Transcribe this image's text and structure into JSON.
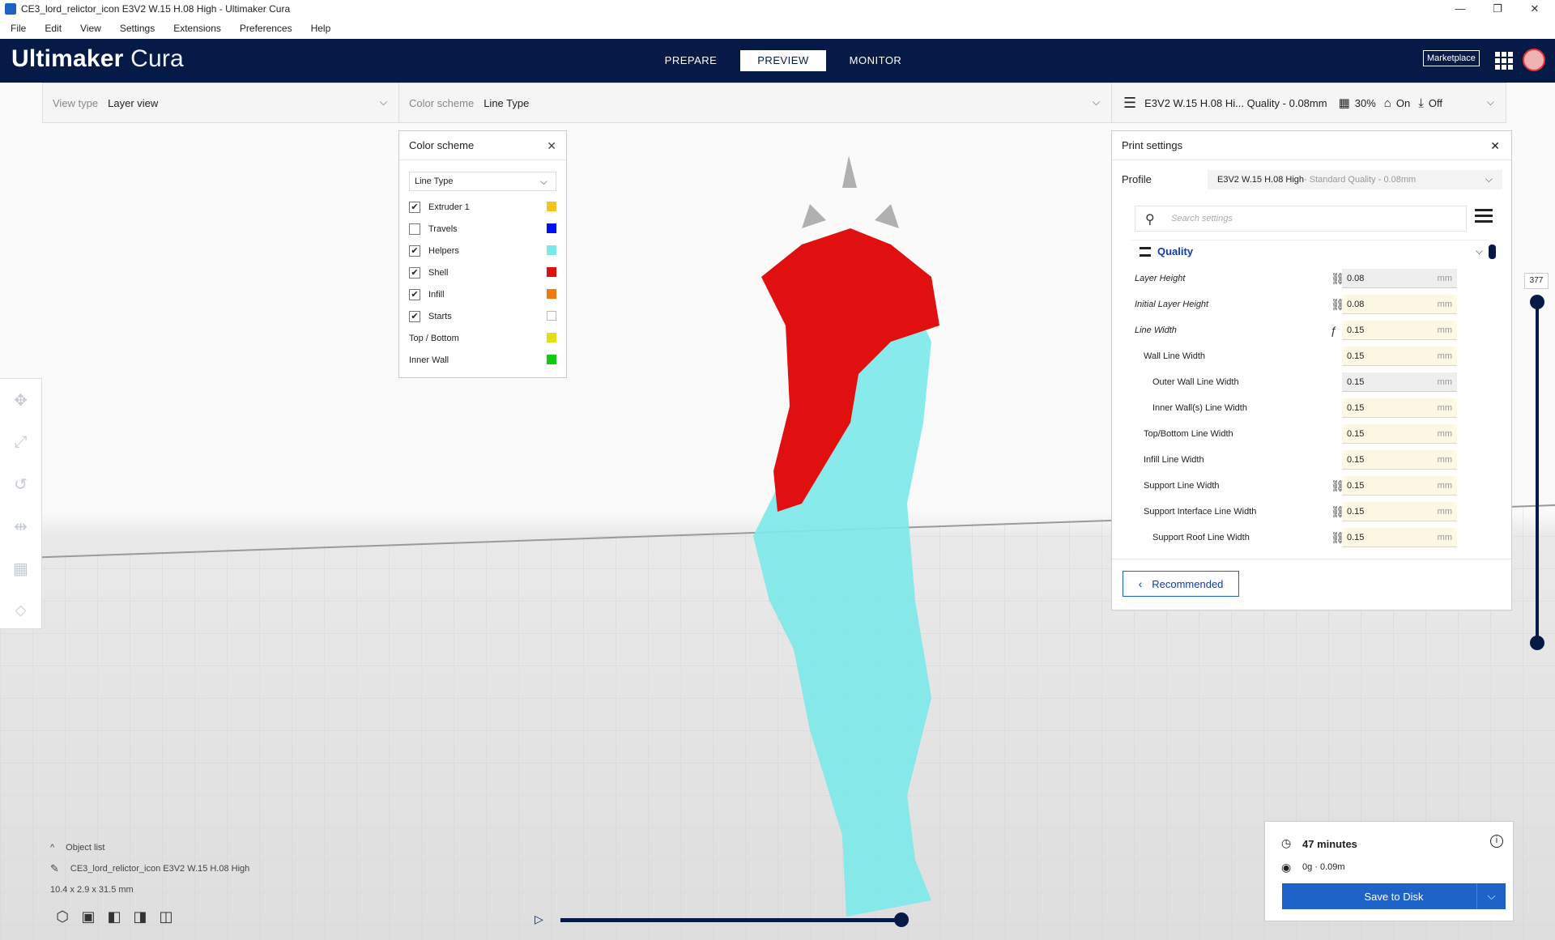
{
  "window": {
    "title": "CE3_lord_relictor_icon E3V2 W.15 H.08 High - Ultimaker Cura",
    "controls": [
      "—",
      "❐",
      "✕"
    ]
  },
  "menu": [
    "File",
    "Edit",
    "View",
    "Settings",
    "Extensions",
    "Preferences",
    "Help"
  ],
  "header": {
    "brand_bold": "Ultimaker",
    "brand_light": "Cura",
    "stages": [
      "PREPARE",
      "PREVIEW",
      "MONITOR"
    ],
    "active_stage": "PREVIEW",
    "marketplace": "Marketplace"
  },
  "viewbar": {
    "view_type_label": "View type",
    "view_type_value": "Layer view",
    "color_scheme_label": "Color scheme",
    "color_scheme_value": "Line Type",
    "profile_summary": "E3V2 W.15 H.08 Hi... Quality - 0.08mm",
    "infill": "30%",
    "support": "On",
    "adhesion": "Off"
  },
  "color_panel": {
    "title": "Color scheme",
    "select": "Line Type",
    "items": [
      {
        "label": "Extruder 1",
        "checkbox": true,
        "checked": true,
        "color": "#f5c320"
      },
      {
        "label": "Travels",
        "checkbox": true,
        "checked": false,
        "color": "#0011ee"
      },
      {
        "label": "Helpers",
        "checkbox": true,
        "checked": true,
        "color": "#7ee8e8"
      },
      {
        "label": "Shell",
        "checkbox": true,
        "checked": true,
        "color": "#e01010"
      },
      {
        "label": "Infill",
        "checkbox": true,
        "checked": true,
        "color": "#ee7a10"
      },
      {
        "label": "Starts",
        "checkbox": true,
        "checked": true,
        "color": "#ffffff"
      },
      {
        "label": "Top / Bottom",
        "checkbox": false,
        "checked": false,
        "color": "#e0e010"
      },
      {
        "label": "Inner Wall",
        "checkbox": false,
        "checked": false,
        "color": "#10cc10"
      }
    ]
  },
  "print_settings": {
    "title": "Print settings",
    "profile_label": "Profile",
    "profile_name": "E3V2 W.15 H.08 High",
    "profile_detail": " - Standard Quality - 0.08mm",
    "search_placeholder": "Search settings",
    "category": "Quality",
    "rows": [
      {
        "label": "Layer Height",
        "value": "0.08",
        "unit": "mm",
        "indent": 0,
        "italic": true,
        "icon": "link",
        "grey": true
      },
      {
        "label": "Initial Layer Height",
        "value": "0.08",
        "unit": "mm",
        "indent": 0,
        "italic": true,
        "icon": "link",
        "grey": false
      },
      {
        "label": "Line Width",
        "value": "0.15",
        "unit": "mm",
        "indent": 0,
        "italic": true,
        "icon": "fx",
        "grey": false
      },
      {
        "label": "Wall Line Width",
        "value": "0.15",
        "unit": "mm",
        "indent": 1,
        "italic": false,
        "icon": "",
        "grey": false
      },
      {
        "label": "Outer Wall Line Width",
        "value": "0.15",
        "unit": "mm",
        "indent": 2,
        "italic": false,
        "icon": "",
        "grey": true
      },
      {
        "label": "Inner Wall(s) Line Width",
        "value": "0.15",
        "unit": "mm",
        "indent": 2,
        "italic": false,
        "icon": "",
        "grey": false
      },
      {
        "label": "Top/Bottom Line Width",
        "value": "0.15",
        "unit": "mm",
        "indent": 1,
        "italic": false,
        "icon": "",
        "grey": false
      },
      {
        "label": "Infill Line Width",
        "value": "0.15",
        "unit": "mm",
        "indent": 1,
        "italic": false,
        "icon": "",
        "grey": false
      },
      {
        "label": "Support Line Width",
        "value": "0.15",
        "unit": "mm",
        "indent": 1,
        "italic": false,
        "icon": "link",
        "grey": false
      },
      {
        "label": "Support Interface Line Width",
        "value": "0.15",
        "unit": "mm",
        "indent": 1,
        "italic": false,
        "icon": "link",
        "grey": false
      },
      {
        "label": "Support Roof Line Width",
        "value": "0.15",
        "unit": "mm",
        "indent": 2,
        "italic": false,
        "icon": "link",
        "grey": false
      }
    ],
    "recommended_button": "Recommended"
  },
  "layer_slider": {
    "value": "377"
  },
  "object_list": {
    "toggle": "Object list",
    "object_name": "CE3_lord_relictor_icon E3V2 W.15 H.08 High",
    "dimensions": "10.4 x 2.9 x 31.5 mm"
  },
  "action_panel": {
    "time": "47 minutes",
    "material": "0g · 0.09m",
    "save_button": "Save to Disk"
  },
  "colors": {
    "header_bg": "#061a48",
    "accent": "#1e63c7",
    "shell": "#e01010",
    "helpers": "#7ee8e8"
  }
}
